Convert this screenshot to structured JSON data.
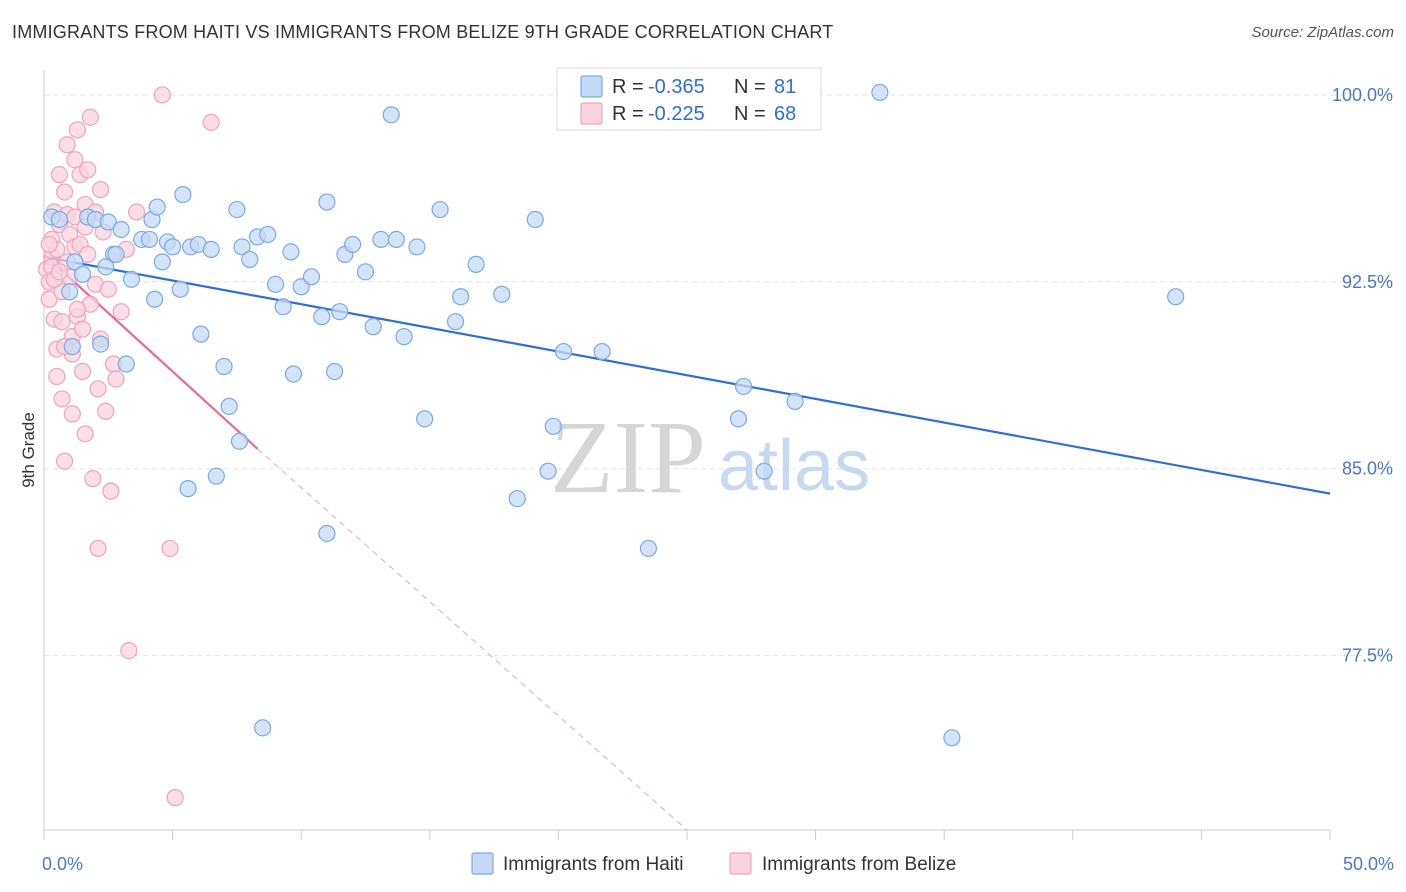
{
  "title": "IMMIGRANTS FROM HAITI VS IMMIGRANTS FROM BELIZE 9TH GRADE CORRELATION CHART",
  "source": "Source: ZipAtlas.com",
  "watermark": {
    "zip": "ZIP",
    "atlas": "atlas"
  },
  "legend": {
    "r_label": "R =",
    "n_label": "N =",
    "haiti": {
      "r": "-0.365",
      "n": "81"
    },
    "belize": {
      "r": "-0.225",
      "n": "68"
    }
  },
  "chart_data": {
    "type": "scatter",
    "title": "IMMIGRANTS FROM HAITI VS IMMIGRANTS FROM BELIZE 9TH GRADE CORRELATION CHART",
    "xlabel": "",
    "ylabel": "9th Grade",
    "xlim": [
      0,
      50
    ],
    "ylim": [
      70.5,
      101.0
    ],
    "x_tick_labels": [
      {
        "value": 0,
        "label": "0.0%"
      },
      {
        "value": 50,
        "label": "50.0%"
      }
    ],
    "y_tick_labels": [
      {
        "value": 100,
        "label": "100.0%"
      },
      {
        "value": 92.5,
        "label": "92.5%"
      },
      {
        "value": 85,
        "label": "85.0%"
      },
      {
        "value": 77.5,
        "label": "77.5%"
      }
    ],
    "series": [
      {
        "name": "Immigrants from Haiti",
        "color": "#7aaae6",
        "fill": "#c4d9f6",
        "line_color": "#2d6fd6",
        "trend": {
          "x": [
            0,
            50
          ],
          "y": [
            93.5,
            84.0
          ]
        },
        "points": [
          [
            0.3,
            95.1
          ],
          [
            0.6,
            95.0
          ],
          [
            1.0,
            92.1
          ],
          [
            1.2,
            93.3
          ],
          [
            1.5,
            92.8
          ],
          [
            1.7,
            95.1
          ],
          [
            2.0,
            95.0
          ],
          [
            2.2,
            90.0
          ],
          [
            2.5,
            94.9
          ],
          [
            2.7,
            93.6
          ],
          [
            2.8,
            93.6
          ],
          [
            3.2,
            89.2
          ],
          [
            3.4,
            92.6
          ],
          [
            3.8,
            94.2
          ],
          [
            4.1,
            94.2
          ],
          [
            4.2,
            95.0
          ],
          [
            4.4,
            95.5
          ],
          [
            4.6,
            93.3
          ],
          [
            4.8,
            94.1
          ],
          [
            5.0,
            93.9
          ],
          [
            5.3,
            92.2
          ],
          [
            5.4,
            96.0
          ],
          [
            5.7,
            93.9
          ],
          [
            6.0,
            94.0
          ],
          [
            6.1,
            90.4
          ],
          [
            6.5,
            93.8
          ],
          [
            7.0,
            89.1
          ],
          [
            7.2,
            87.5
          ],
          [
            7.5,
            95.4
          ],
          [
            7.7,
            93.9
          ],
          [
            8.0,
            93.4
          ],
          [
            8.3,
            94.3
          ],
          [
            8.7,
            94.4
          ],
          [
            9.0,
            92.4
          ],
          [
            9.3,
            91.5
          ],
          [
            9.6,
            93.7
          ],
          [
            9.7,
            88.8
          ],
          [
            10.0,
            92.3
          ],
          [
            10.4,
            92.7
          ],
          [
            10.8,
            91.1
          ],
          [
            11.0,
            95.7
          ],
          [
            11.3,
            88.9
          ],
          [
            11.5,
            91.3
          ],
          [
            11.7,
            93.6
          ],
          [
            12.0,
            94.0
          ],
          [
            12.5,
            92.9
          ],
          [
            12.8,
            90.7
          ],
          [
            13.1,
            94.2
          ],
          [
            13.7,
            94.2
          ],
          [
            14.0,
            90.3
          ],
          [
            14.5,
            93.9
          ],
          [
            14.8,
            87.0
          ],
          [
            15.4,
            95.4
          ],
          [
            16.0,
            90.9
          ],
          [
            16.2,
            91.9
          ],
          [
            16.8,
            93.2
          ],
          [
            17.8,
            92.0
          ],
          [
            18.4,
            83.8
          ],
          [
            19.1,
            95.0
          ],
          [
            19.6,
            84.9
          ],
          [
            19.8,
            86.7
          ],
          [
            20.2,
            89.7
          ],
          [
            21.7,
            89.7
          ],
          [
            23.5,
            81.8
          ],
          [
            27.0,
            87.0
          ],
          [
            27.2,
            88.3
          ],
          [
            28.0,
            84.9
          ],
          [
            29.2,
            87.7
          ],
          [
            32.5,
            100.1
          ],
          [
            35.3,
            74.2
          ],
          [
            44.0,
            91.9
          ],
          [
            13.5,
            99.2
          ],
          [
            5.6,
            84.2
          ],
          [
            6.7,
            84.7
          ],
          [
            7.6,
            86.1
          ],
          [
            8.5,
            74.6
          ],
          [
            11.0,
            82.4
          ],
          [
            1.1,
            89.9
          ],
          [
            2.4,
            93.1
          ],
          [
            3.0,
            94.6
          ],
          [
            4.3,
            91.8
          ]
        ]
      },
      {
        "name": "Immigrants from Belize",
        "color": "#f0a3bd",
        "fill": "#f9d3df",
        "line_color": "#e8699a",
        "trend": {
          "x": [
            0,
            8.3
          ],
          "y": [
            93.6,
            85.8
          ]
        },
        "trend_dashed": {
          "x": [
            8.3,
            25.0
          ],
          "y": [
            85.8,
            70.5
          ]
        },
        "points": [
          [
            0.1,
            93.0
          ],
          [
            0.2,
            92.5
          ],
          [
            0.2,
            91.8
          ],
          [
            0.3,
            94.2
          ],
          [
            0.3,
            93.5
          ],
          [
            0.4,
            95.3
          ],
          [
            0.4,
            91.0
          ],
          [
            0.5,
            93.8
          ],
          [
            0.5,
            89.8
          ],
          [
            0.5,
            88.7
          ],
          [
            0.6,
            96.8
          ],
          [
            0.6,
            94.8
          ],
          [
            0.7,
            92.1
          ],
          [
            0.7,
            90.9
          ],
          [
            0.7,
            87.8
          ],
          [
            0.8,
            96.1
          ],
          [
            0.8,
            85.3
          ],
          [
            0.9,
            98.0
          ],
          [
            0.9,
            95.2
          ],
          [
            1.0,
            94.4
          ],
          [
            1.0,
            92.7
          ],
          [
            1.1,
            90.3
          ],
          [
            1.1,
            89.6
          ],
          [
            1.1,
            87.2
          ],
          [
            1.2,
            97.4
          ],
          [
            1.2,
            95.1
          ],
          [
            1.2,
            93.9
          ],
          [
            1.3,
            98.6
          ],
          [
            1.3,
            91.1
          ],
          [
            1.4,
            96.8
          ],
          [
            1.4,
            94.0
          ],
          [
            1.5,
            90.6
          ],
          [
            1.5,
            88.9
          ],
          [
            1.6,
            95.6
          ],
          [
            1.6,
            86.4
          ],
          [
            1.7,
            97.0
          ],
          [
            1.7,
            93.6
          ],
          [
            1.8,
            99.1
          ],
          [
            1.8,
            91.6
          ],
          [
            1.9,
            84.6
          ],
          [
            2.0,
            95.3
          ],
          [
            2.0,
            92.4
          ],
          [
            2.1,
            88.2
          ],
          [
            2.1,
            81.8
          ],
          [
            2.2,
            96.2
          ],
          [
            2.2,
            90.2
          ],
          [
            2.3,
            94.5
          ],
          [
            2.4,
            87.3
          ],
          [
            2.5,
            92.2
          ],
          [
            2.6,
            84.1
          ],
          [
            2.7,
            89.2
          ],
          [
            2.8,
            88.6
          ],
          [
            3.0,
            91.3
          ],
          [
            3.2,
            93.8
          ],
          [
            3.3,
            77.7
          ],
          [
            3.6,
            95.3
          ],
          [
            4.6,
            100.0
          ],
          [
            4.9,
            81.8
          ],
          [
            5.1,
            71.8
          ],
          [
            6.5,
            98.9
          ],
          [
            0.3,
            93.1
          ],
          [
            0.4,
            92.6
          ],
          [
            0.9,
            93.3
          ],
          [
            1.6,
            94.7
          ],
          [
            0.2,
            94.0
          ],
          [
            0.6,
            92.9
          ],
          [
            1.3,
            91.4
          ],
          [
            0.8,
            89.9
          ]
        ]
      }
    ]
  },
  "bottom_legend": {
    "haiti_label": "Immigrants from Haiti",
    "belize_label": "Immigrants from Belize"
  }
}
